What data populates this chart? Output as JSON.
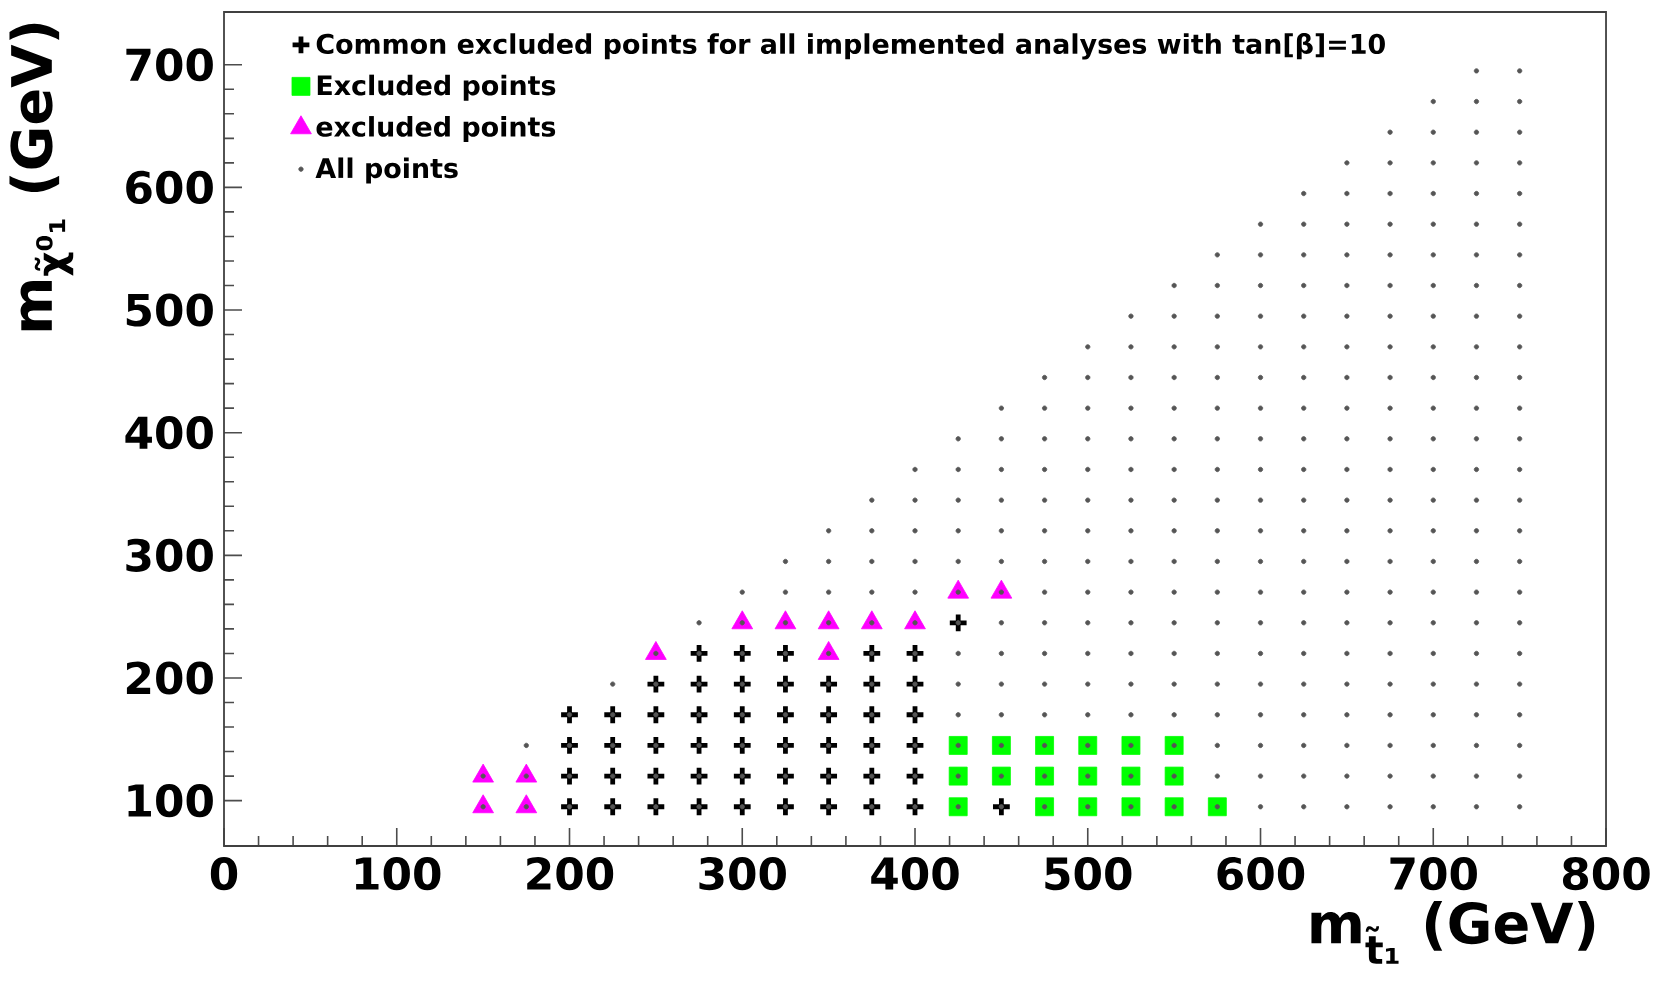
{
  "chart_data": {
    "type": "scatter",
    "xlabel": "m$_{t̃₁}$ (GeV)",
    "ylabel": "m$_{χ̃⁰₁}$ (GeV)",
    "xlim": [
      0,
      800
    ],
    "ylim": [
      63,
      743
    ],
    "xticks": [
      0,
      100,
      200,
      300,
      400,
      500,
      600,
      700,
      800
    ],
    "yticks": [
      100,
      200,
      300,
      400,
      500,
      600,
      700
    ],
    "grid": false,
    "legend": "top left",
    "series": [
      {
        "name": "Common excluded points for all implemented analyses with tan[β]=10",
        "color": "#000000",
        "marker": "cross",
        "x": [
          200,
          200,
          200,
          200,
          225,
          225,
          225,
          225,
          250,
          250,
          250,
          250,
          250,
          275,
          275,
          275,
          275,
          275,
          275,
          300,
          300,
          300,
          300,
          300,
          300,
          325,
          325,
          325,
          325,
          325,
          325,
          350,
          350,
          350,
          350,
          350,
          375,
          375,
          375,
          375,
          375,
          375,
          400,
          400,
          400,
          400,
          400,
          400,
          425,
          450
        ],
        "values": [
          95,
          120,
          145,
          170,
          95,
          120,
          145,
          170,
          95,
          120,
          145,
          170,
          195,
          95,
          120,
          145,
          170,
          195,
          220,
          95,
          120,
          145,
          170,
          195,
          220,
          95,
          120,
          145,
          170,
          195,
          220,
          95,
          120,
          145,
          170,
          195,
          95,
          120,
          145,
          170,
          195,
          220,
          95,
          120,
          145,
          170,
          195,
          220,
          245,
          95
        ]
      },
      {
        "name": "Excluded points",
        "color": "#00ff00",
        "marker": "square",
        "x": [
          425,
          425,
          425,
          450,
          450,
          475,
          475,
          475,
          500,
          500,
          500,
          525,
          525,
          525,
          550,
          550,
          550,
          575
        ],
        "values": [
          95,
          120,
          145,
          120,
          145,
          95,
          120,
          145,
          95,
          120,
          145,
          95,
          120,
          145,
          95,
          120,
          145,
          95
        ]
      },
      {
        "name": "excluded points",
        "color": "#ff00ff",
        "marker": "triangle",
        "x": [
          150,
          150,
          175,
          175,
          250,
          300,
          325,
          350,
          350,
          375,
          400,
          425,
          450
        ],
        "values": [
          95,
          120,
          95,
          120,
          220,
          245,
          245,
          220,
          245,
          245,
          245,
          270,
          270
        ]
      },
      {
        "name": "All points",
        "color": "#555555",
        "marker": "circle",
        "x": [
          150,
          150,
          175,
          175,
          175,
          200,
          200,
          200,
          200,
          225,
          225,
          225,
          225,
          225,
          250,
          250,
          250,
          250,
          250,
          250,
          275,
          275,
          275,
          275,
          275,
          275,
          275,
          300,
          300,
          300,
          300,
          300,
          300,
          300,
          300,
          325,
          325,
          325,
          325,
          325,
          325,
          325,
          325,
          325,
          350,
          350,
          350,
          350,
          350,
          350,
          350,
          350,
          350,
          350,
          375,
          375,
          375,
          375,
          375,
          375,
          375,
          375,
          375,
          375,
          375,
          400,
          400,
          400,
          400,
          400,
          400,
          400,
          400,
          400,
          400,
          400,
          400,
          425,
          425,
          425,
          425,
          425,
          425,
          425,
          425,
          425,
          425,
          425,
          425,
          425,
          450,
          450,
          450,
          450,
          450,
          450,
          450,
          450,
          450,
          450,
          450,
          450,
          450,
          450,
          475,
          475,
          475,
          475,
          475,
          475,
          475,
          475,
          475,
          475,
          475,
          475,
          475,
          475,
          475,
          500,
          500,
          500,
          500,
          500,
          500,
          500,
          500,
          500,
          500,
          500,
          500,
          500,
          500,
          500,
          500,
          525,
          525,
          525,
          525,
          525,
          525,
          525,
          525,
          525,
          525,
          525,
          525,
          525,
          525,
          525,
          525,
          525,
          550,
          550,
          550,
          550,
          550,
          550,
          550,
          550,
          550,
          550,
          550,
          550,
          550,
          550,
          550,
          550,
          550,
          550,
          575,
          575,
          575,
          575,
          575,
          575,
          575,
          575,
          575,
          575,
          575,
          575,
          575,
          575,
          575,
          575,
          575,
          575,
          575,
          600,
          600,
          600,
          600,
          600,
          600,
          600,
          600,
          600,
          600,
          600,
          600,
          600,
          600,
          600,
          600,
          600,
          600,
          600,
          600,
          625,
          625,
          625,
          625,
          625,
          625,
          625,
          625,
          625,
          625,
          625,
          625,
          625,
          625,
          625,
          625,
          625,
          625,
          625,
          625,
          625,
          650,
          650,
          650,
          650,
          650,
          650,
          650,
          650,
          650,
          650,
          650,
          650,
          650,
          650,
          650,
          650,
          650,
          650,
          650,
          650,
          650,
          650,
          675,
          675,
          675,
          675,
          675,
          675,
          675,
          675,
          675,
          675,
          675,
          675,
          675,
          675,
          675,
          675,
          675,
          675,
          675,
          675,
          675,
          675,
          675,
          700,
          700,
          700,
          700,
          700,
          700,
          700,
          700,
          700,
          700,
          700,
          700,
          700,
          700,
          700,
          700,
          700,
          700,
          700,
          700,
          700,
          700,
          700,
          700,
          725,
          725,
          725,
          725,
          725,
          725,
          725,
          725,
          725,
          725,
          725,
          725,
          725,
          725,
          725,
          725,
          725,
          725,
          725,
          725,
          725,
          725,
          725,
          725,
          725,
          750,
          750,
          750,
          750,
          750,
          750,
          750,
          750,
          750,
          750,
          750,
          750,
          750,
          750,
          750,
          750,
          750,
          750,
          750,
          750,
          750,
          750,
          750,
          750,
          750
        ],
        "values": [
          95,
          120,
          95,
          120,
          145,
          95,
          120,
          145,
          170,
          95,
          120,
          145,
          170,
          195,
          95,
          120,
          145,
          170,
          195,
          220,
          95,
          120,
          145,
          170,
          195,
          220,
          245,
          95,
          120,
          145,
          170,
          195,
          220,
          245,
          270,
          95,
          120,
          145,
          170,
          195,
          220,
          245,
          270,
          295,
          95,
          120,
          145,
          170,
          195,
          220,
          245,
          270,
          295,
          320,
          95,
          120,
          145,
          170,
          195,
          220,
          245,
          270,
          295,
          320,
          345,
          95,
          120,
          145,
          170,
          195,
          220,
          245,
          270,
          295,
          320,
          345,
          370,
          95,
          120,
          145,
          170,
          195,
          220,
          245,
          270,
          295,
          320,
          345,
          370,
          395,
          95,
          120,
          145,
          170,
          195,
          220,
          245,
          270,
          295,
          320,
          345,
          370,
          395,
          420,
          95,
          120,
          145,
          170,
          195,
          220,
          245,
          270,
          295,
          320,
          345,
          370,
          395,
          420,
          445,
          95,
          120,
          145,
          170,
          195,
          220,
          245,
          270,
          295,
          320,
          345,
          370,
          395,
          420,
          445,
          470,
          95,
          120,
          145,
          170,
          195,
          220,
          245,
          270,
          295,
          320,
          345,
          370,
          395,
          420,
          445,
          470,
          495,
          95,
          120,
          145,
          170,
          195,
          220,
          245,
          270,
          295,
          320,
          345,
          370,
          395,
          420,
          445,
          470,
          495,
          520,
          95,
          120,
          145,
          170,
          195,
          220,
          245,
          270,
          295,
          320,
          345,
          370,
          395,
          420,
          445,
          470,
          495,
          520,
          545,
          95,
          120,
          145,
          170,
          195,
          220,
          245,
          270,
          295,
          320,
          345,
          370,
          395,
          420,
          445,
          470,
          495,
          520,
          545,
          570,
          95,
          120,
          145,
          170,
          195,
          220,
          245,
          270,
          295,
          320,
          345,
          370,
          395,
          420,
          445,
          470,
          495,
          520,
          545,
          570,
          595,
          95,
          120,
          145,
          170,
          195,
          220,
          245,
          270,
          295,
          320,
          345,
          370,
          395,
          420,
          445,
          470,
          495,
          520,
          545,
          570,
          595,
          620,
          95,
          120,
          145,
          170,
          195,
          220,
          245,
          270,
          295,
          320,
          345,
          370,
          395,
          420,
          445,
          470,
          495,
          520,
          545,
          570,
          595,
          620,
          645,
          95,
          120,
          145,
          170,
          195,
          220,
          245,
          270,
          295,
          320,
          345,
          370,
          395,
          420,
          445,
          470,
          495,
          520,
          545,
          570,
          595,
          620,
          645,
          670,
          95,
          120,
          145,
          170,
          195,
          220,
          245,
          270,
          295,
          320,
          345,
          370,
          395,
          420,
          445,
          470,
          495,
          520,
          545,
          570,
          595,
          620,
          645,
          670,
          695,
          95,
          120,
          145,
          170,
          195,
          220,
          245,
          270,
          295,
          320,
          345,
          370,
          395,
          420,
          445,
          470,
          495,
          520,
          545,
          570,
          595,
          620,
          645,
          670,
          695
        ]
      }
    ]
  }
}
